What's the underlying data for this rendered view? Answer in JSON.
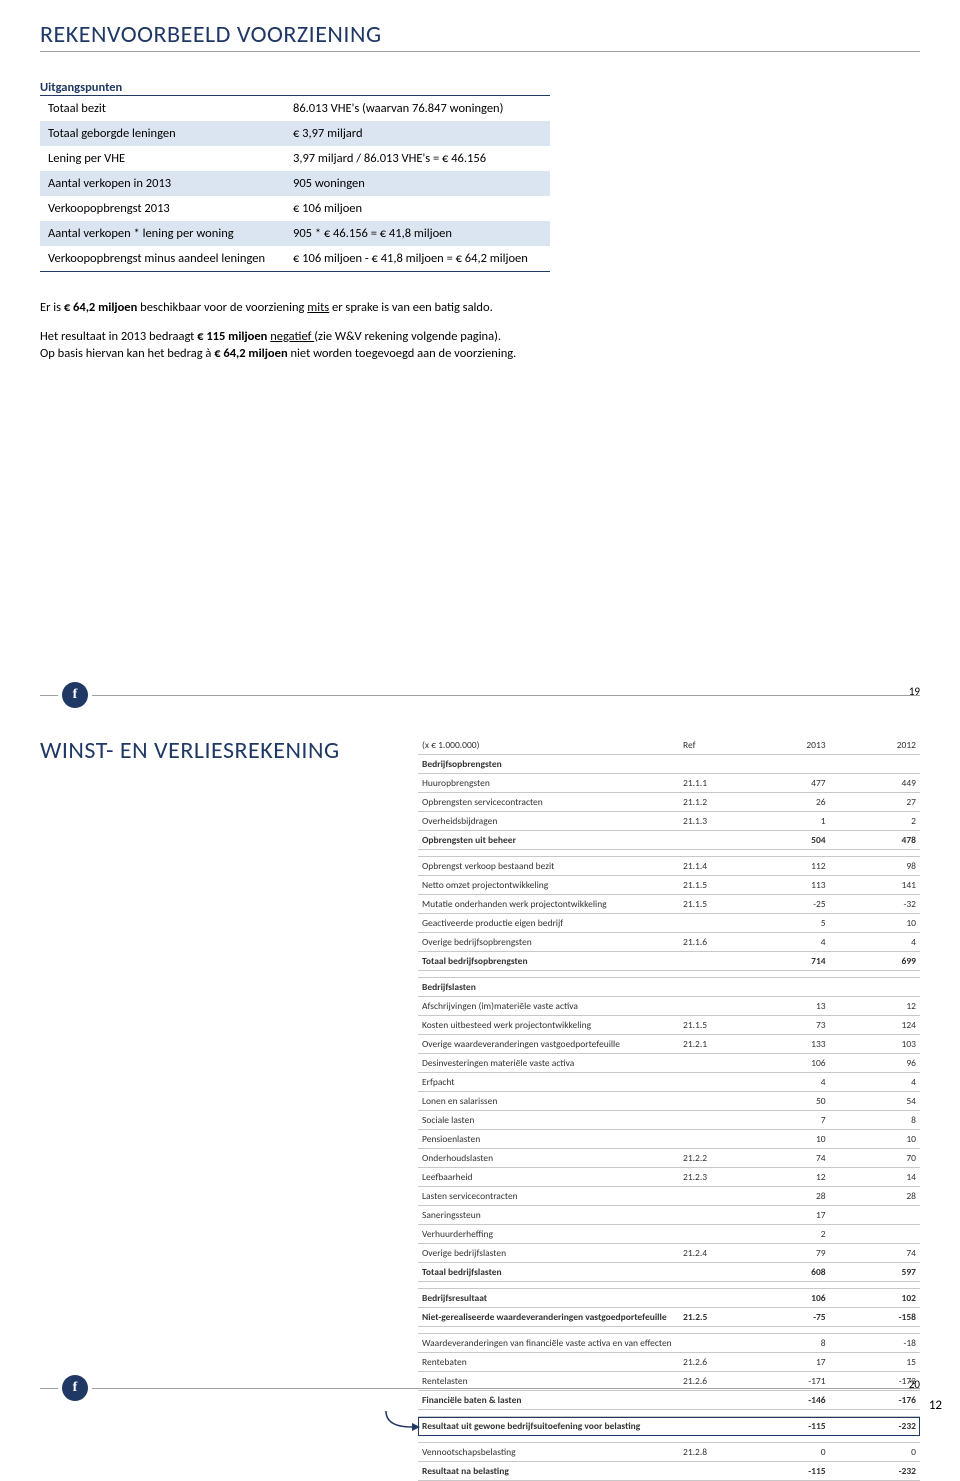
{
  "slide1": {
    "title": "REKENVOORBEELD VOORZIENING",
    "subtitle": "Uitgangspunten",
    "rows": [
      {
        "label": "Totaal bezit",
        "value": "86.013 VHE's (waarvan 76.847 woningen)",
        "alt": false
      },
      {
        "label": "Totaal geborgde leningen",
        "value": "€ 3,97 miljard",
        "alt": true
      },
      {
        "label": "Lening per VHE",
        "value": "3,97 miljard / 86.013 VHE's = € 46.156",
        "alt": false
      },
      {
        "label": "Aantal verkopen in 2013",
        "value": "905 woningen",
        "alt": true
      },
      {
        "label": "Verkoopopbrengst 2013",
        "value": "€ 106 miljoen",
        "alt": false
      },
      {
        "label": "Aantal verkopen * lening per woning",
        "value": "905 * € 46.156 = € 41,8 miljoen",
        "alt": true
      },
      {
        "label": "Verkoopopbrengst minus aandeel leningen",
        "value": "€ 106 miljoen - € 41,8 miljoen = € 64,2 miljoen",
        "alt": false
      }
    ],
    "para1_pre": "Er is ",
    "para1_bold": "€ 64,2 miljoen",
    "para1_mid": " beschikbaar voor de voorziening ",
    "para1_u": "mits",
    "para1_post": " er sprake is van een batig saldo.",
    "para2_a": "Het resultaat in 2013 bedraagt ",
    "para2_b": "€ 115 miljoen ",
    "para2_u": "negatief ",
    "para2_c": "(zie W&V rekening volgende pagina).",
    "para3_a": "Op basis hiervan kan het bedrag à ",
    "para3_b": "€ 64,2 miljoen",
    "para3_c": " niet worden toegevoegd aan de voorziening.",
    "page_num": "19",
    "badge": "f"
  },
  "slide2": {
    "title": "WINST- EN VERLIESREKENING",
    "badge": "f",
    "page_num": "20",
    "corner_page": "12",
    "fin": {
      "header": [
        "(x € 1.000.000)",
        "Ref",
        "2013",
        "2012"
      ],
      "rows": [
        {
          "c": [
            "Bedrijfsopbrengsten",
            "",
            "",
            ""
          ],
          "bold": true
        },
        {
          "c": [
            "Huuropbrengsten",
            "21.1.1",
            "477",
            "449"
          ]
        },
        {
          "c": [
            "Opbrengsten servicecontracten",
            "21.1.2",
            "26",
            "27"
          ]
        },
        {
          "c": [
            "Overheidsbijdragen",
            "21.1.3",
            "1",
            "2"
          ]
        },
        {
          "c": [
            "Opbrengsten uit beheer",
            "",
            "504",
            "478"
          ],
          "bold": true
        },
        {
          "c": [
            "",
            "",
            "",
            ""
          ]
        },
        {
          "c": [
            "Opbrengst verkoop bestaand bezit",
            "21.1.4",
            "112",
            "98"
          ]
        },
        {
          "c": [
            "Netto omzet projectontwikkeling",
            "21.1.5",
            "113",
            "141"
          ]
        },
        {
          "c": [
            "Mutatie onderhanden werk projectontwikkeling",
            "21.1.5",
            "-25",
            "-32"
          ]
        },
        {
          "c": [
            "Geactiveerde productie eigen bedrijf",
            "",
            "5",
            "10"
          ]
        },
        {
          "c": [
            "Overige bedrijfsopbrengsten",
            "21.1.6",
            "4",
            "4"
          ]
        },
        {
          "c": [
            "Totaal bedrijfsopbrengsten",
            "",
            "714",
            "699"
          ],
          "bold": true
        },
        {
          "c": [
            "",
            "",
            "",
            ""
          ]
        },
        {
          "c": [
            "Bedrijfslasten",
            "",
            "",
            ""
          ],
          "bold": true
        },
        {
          "c": [
            "Afschrijvingen (im)materiële vaste activa",
            "",
            "13",
            "12"
          ]
        },
        {
          "c": [
            "Kosten uitbesteed werk projectontwikkeling",
            "21.1.5",
            "73",
            "124"
          ]
        },
        {
          "c": [
            "Overige waardeveranderingen vastgoedportefeuille",
            "21.2.1",
            "133",
            "103"
          ]
        },
        {
          "c": [
            "Desinvesteringen materiële vaste activa",
            "",
            "106",
            "96"
          ]
        },
        {
          "c": [
            "Erfpacht",
            "",
            "4",
            "4"
          ]
        },
        {
          "c": [
            "Lonen en salarissen",
            "",
            "50",
            "54"
          ]
        },
        {
          "c": [
            "Sociale lasten",
            "",
            "7",
            "8"
          ]
        },
        {
          "c": [
            "Pensioenlasten",
            "",
            "10",
            "10"
          ]
        },
        {
          "c": [
            "Onderhoudslasten",
            "21.2.2",
            "74",
            "70"
          ]
        },
        {
          "c": [
            "Leefbaarheid",
            "21.2.3",
            "12",
            "14"
          ]
        },
        {
          "c": [
            "Lasten servicecontracten",
            "",
            "28",
            "28"
          ]
        },
        {
          "c": [
            "Saneringssteun",
            "",
            "17",
            ""
          ]
        },
        {
          "c": [
            "Verhuurderheffing",
            "",
            "2",
            ""
          ]
        },
        {
          "c": [
            "Overige bedrijfslasten",
            "21.2.4",
            "79",
            "74"
          ]
        },
        {
          "c": [
            "Totaal bedrijfslasten",
            "",
            "608",
            "597"
          ],
          "bold": true
        },
        {
          "c": [
            "",
            "",
            "",
            ""
          ]
        },
        {
          "c": [
            "Bedrijfsresultaat",
            "",
            "106",
            "102"
          ],
          "bold": true
        },
        {
          "c": [
            "Niet-gerealiseerde waardeveranderingen vastgoedportefeuille",
            "21.2.5",
            "-75",
            "-158"
          ],
          "bold": true
        },
        {
          "c": [
            "",
            "",
            "",
            ""
          ]
        },
        {
          "c": [
            "Waardeveranderingen van financiële vaste activa en van effecten",
            "",
            "8",
            "-18"
          ]
        },
        {
          "c": [
            "Rentebaten",
            "21.2.6",
            "17",
            "15"
          ]
        },
        {
          "c": [
            "Rentelasten",
            "21.2.6",
            "-171",
            "-173"
          ]
        },
        {
          "c": [
            "Financiële baten & lasten",
            "",
            "-146",
            "-176"
          ],
          "bold": true
        },
        {
          "c": [
            "",
            "",
            "",
            ""
          ]
        },
        {
          "c": [
            "Resultaat uit gewone bedrijfsuitoefening voor belasting",
            "",
            "-115",
            "-232"
          ],
          "bold": true,
          "highlight": true
        },
        {
          "c": [
            "",
            "",
            "",
            ""
          ]
        },
        {
          "c": [
            "Vennootschapsbelasting",
            "21.2.8",
            "0",
            "0"
          ]
        },
        {
          "c": [
            "Resultaat na belasting",
            "",
            "-115",
            "-232"
          ],
          "bold": true
        }
      ]
    }
  }
}
